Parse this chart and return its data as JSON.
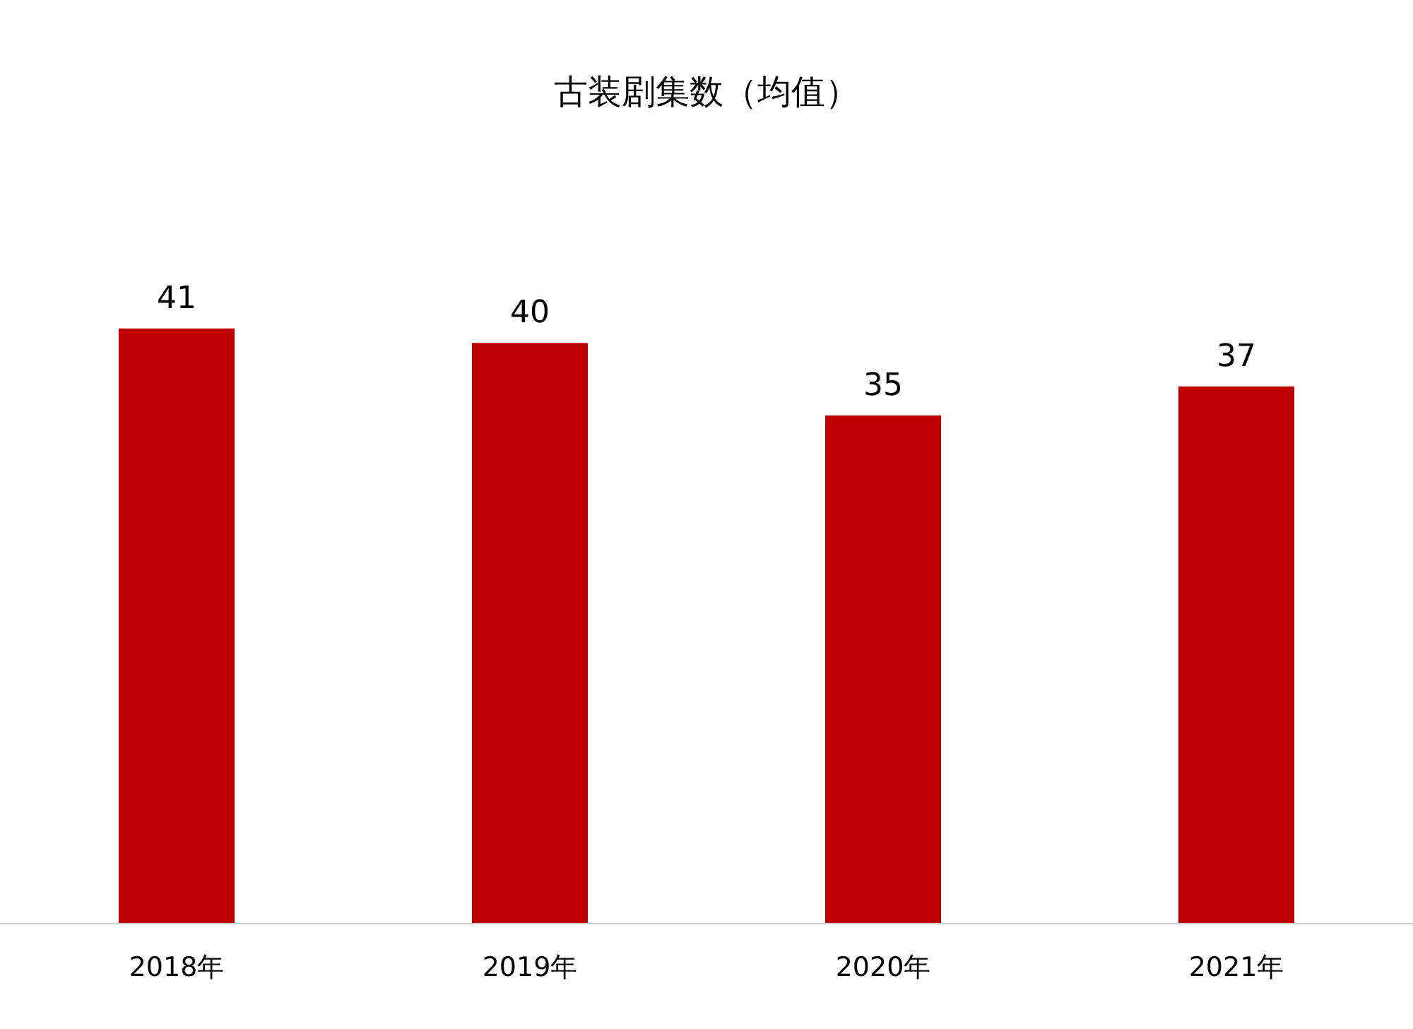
{
  "chart_data": {
    "type": "bar",
    "title": "古装剧集数（均值）",
    "categories": [
      "2018年",
      "2019年",
      "2020年",
      "2021年"
    ],
    "values": [
      41,
      40,
      35,
      37
    ],
    "color": "#c00000",
    "data_labels": true
  }
}
